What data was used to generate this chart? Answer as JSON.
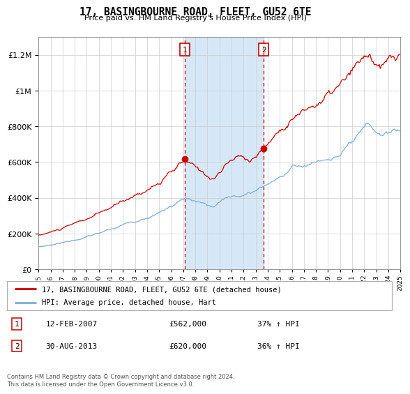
{
  "title": "17, BASINGBOURNE ROAD, FLEET, GU52 6TE",
  "subtitle": "Price paid vs. HM Land Registry's House Price Index (HPI)",
  "footer": "Contains HM Land Registry data © Crown copyright and database right 2024.\nThis data is licensed under the Open Government Licence v3.0.",
  "legend_line1": "17, BASINGBOURNE ROAD, FLEET, GU52 6TE (detached house)",
  "legend_line2": "HPI: Average price, detached house, Hart",
  "transaction1_date": "12-FEB-2007",
  "transaction1_price": "£562,000",
  "transaction1_hpi": "37% ↑ HPI",
  "transaction2_date": "30-AUG-2013",
  "transaction2_price": "£620,000",
  "transaction2_hpi": "36% ↑ HPI",
  "red_color": "#cc0000",
  "blue_color": "#7bafd4",
  "shaded_color": "#d6e8f7",
  "background_color": "#ffffff",
  "grid_color": "#cccccc",
  "ylim_min": 0,
  "ylim_max": 1300000,
  "year_start": 1995,
  "year_end": 2025,
  "transaction1_year": 2007.12,
  "transaction2_year": 2013.67
}
